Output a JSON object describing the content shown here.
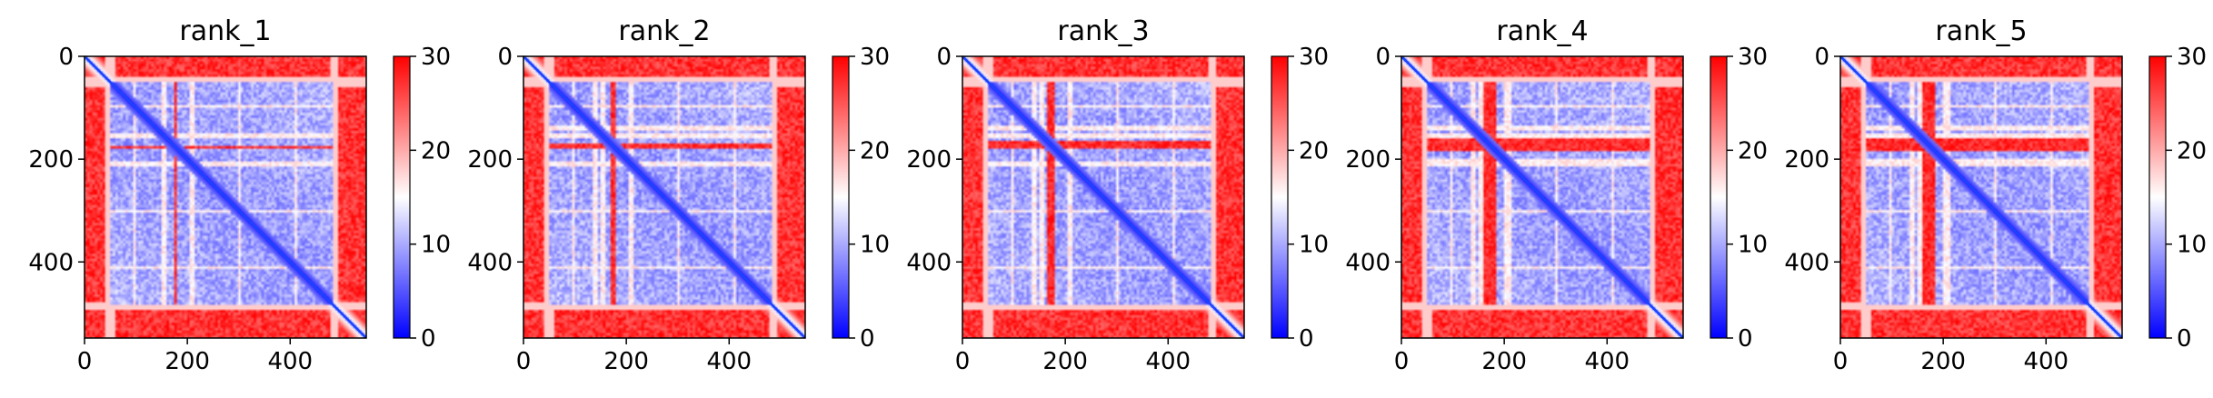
{
  "colors": {
    "low": "#0000ff",
    "mid": "#ffffff",
    "high": "#ff0000",
    "diagonal": "#1a44ff",
    "axis": "#000000"
  },
  "colorbar": {
    "colormap": "bwr",
    "vmin": 0,
    "vmax": 30,
    "ticks": [
      "0",
      "10",
      "20",
      "30"
    ]
  },
  "chart_data": [
    {
      "type": "heatmap",
      "title": "rank_1",
      "xlabel": "",
      "ylabel": "",
      "xlim": [
        0,
        548
      ],
      "ylim": [
        548,
        0
      ],
      "x_ticks": [
        "0",
        "200",
        "400"
      ],
      "y_ticks": [
        "0",
        "200",
        "400"
      ],
      "matrix_size": 548,
      "value_range": [
        0,
        30
      ],
      "pattern": {
        "core_domain": [
          50,
          485
        ],
        "core_value": 6,
        "border_value": 30,
        "diagonal_value": 0,
        "high_bands": [
          [
            172,
            180
          ]
        ],
        "light_bands": [
          [
            93,
            100
          ],
          [
            150,
            158
          ],
          [
            205,
            213
          ],
          [
            298,
            304
          ],
          [
            410,
            415
          ]
        ],
        "light_vertical": [
          [
            150,
            158
          ],
          [
            210,
            216
          ]
        ]
      }
    },
    {
      "type": "heatmap",
      "title": "rank_2",
      "xlabel": "",
      "ylabel": "",
      "xlim": [
        0,
        548
      ],
      "ylim": [
        548,
        0
      ],
      "x_ticks": [
        "0",
        "200",
        "400"
      ],
      "y_ticks": [
        "0",
        "200",
        "400"
      ],
      "matrix_size": 548,
      "value_range": [
        0,
        30
      ],
      "pattern": {
        "core_domain": [
          50,
          485
        ],
        "core_value": 6,
        "border_value": 30,
        "diagonal_value": 0,
        "high_bands": [
          [
            168,
            178
          ]
        ],
        "light_bands": [
          [
            93,
            100
          ],
          [
            135,
            142
          ],
          [
            205,
            213
          ],
          [
            298,
            304
          ],
          [
            410,
            415
          ]
        ],
        "light_vertical": [
          [
            150,
            158
          ],
          [
            205,
            213
          ]
        ]
      }
    },
    {
      "type": "heatmap",
      "title": "rank_3",
      "xlabel": "",
      "ylabel": "",
      "xlim": [
        0,
        548
      ],
      "ylim": [
        548,
        0
      ],
      "x_ticks": [
        "0",
        "200",
        "400"
      ],
      "y_ticks": [
        "0",
        "200",
        "400"
      ],
      "matrix_size": 548,
      "value_range": [
        0,
        30
      ],
      "pattern": {
        "core_domain": [
          50,
          485
        ],
        "core_value": 6,
        "border_value": 30,
        "diagonal_value": 0,
        "high_bands": [
          [
            165,
            178
          ]
        ],
        "light_bands": [
          [
            93,
            100
          ],
          [
            135,
            142
          ],
          [
            205,
            213
          ],
          [
            298,
            304
          ],
          [
            410,
            415
          ]
        ],
        "light_vertical": [
          [
            150,
            158
          ],
          [
            205,
            213
          ]
        ]
      }
    },
    {
      "type": "heatmap",
      "title": "rank_4",
      "xlabel": "",
      "ylabel": "",
      "xlim": [
        0,
        548
      ],
      "ylim": [
        548,
        0
      ],
      "x_ticks": [
        "0",
        "200",
        "400"
      ],
      "y_ticks": [
        "0",
        "200",
        "400"
      ],
      "matrix_size": 548,
      "value_range": [
        0,
        30
      ],
      "pattern": {
        "core_domain": [
          50,
          485
        ],
        "core_value": 6,
        "border_value": 30,
        "diagonal_value": 0,
        "high_bands": [
          [
            160,
            182
          ]
        ],
        "light_bands": [
          [
            93,
            100
          ],
          [
            135,
            142
          ],
          [
            205,
            213
          ],
          [
            298,
            304
          ],
          [
            410,
            415
          ]
        ],
        "light_vertical": [
          [
            150,
            158
          ],
          [
            200,
            210
          ]
        ]
      }
    },
    {
      "type": "heatmap",
      "title": "rank_5",
      "xlabel": "",
      "ylabel": "",
      "xlim": [
        0,
        548
      ],
      "ylim": [
        548,
        0
      ],
      "x_ticks": [
        "0",
        "200",
        "400"
      ],
      "y_ticks": [
        "0",
        "200",
        "400"
      ],
      "matrix_size": 548,
      "value_range": [
        0,
        30
      ],
      "pattern": {
        "core_domain": [
          50,
          485
        ],
        "core_value": 6,
        "border_value": 30,
        "diagonal_value": 0,
        "high_bands": [
          [
            160,
            182
          ]
        ],
        "light_bands": [
          [
            93,
            100
          ],
          [
            135,
            142
          ],
          [
            205,
            213
          ],
          [
            298,
            304
          ],
          [
            410,
            415
          ]
        ],
        "light_vertical": [
          [
            150,
            158
          ],
          [
            200,
            210
          ]
        ]
      }
    }
  ]
}
